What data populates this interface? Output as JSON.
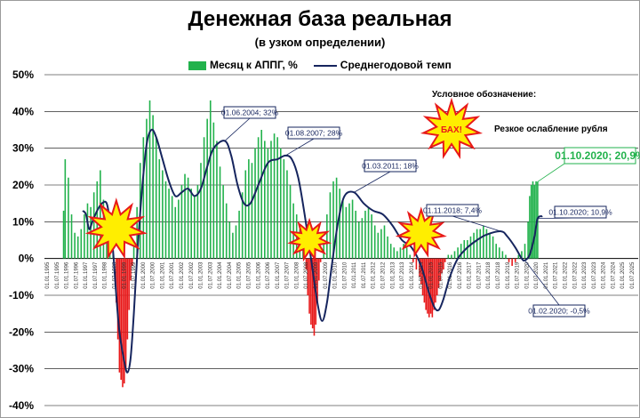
{
  "chart_data": {
    "type": "bar",
    "title": "Денежная база реальная",
    "subtitle": "(в узком определении)",
    "legend": {
      "bar": "Месяц к АППГ, %",
      "line": "Среднегодовой темп"
    },
    "ylim": [
      -40,
      50
    ],
    "ytick_labels": [
      "50%",
      "40%",
      "30%",
      "20%",
      "10%",
      "0%",
      "-10%",
      "-20%",
      "-30%",
      "-40%"
    ],
    "xtick_labels": [
      "01.01.1995",
      "01.07.1995",
      "01.01.1996",
      "01.07.1996",
      "01.01.1997",
      "01.07.1997",
      "01.01.1998",
      "01.07.1998",
      "01.01.1999",
      "01.07.1999",
      "01.01.2000",
      "01.07.2000",
      "01.01.2001",
      "01.07.2001",
      "01.01.2002",
      "01.07.2002",
      "01.01.2003",
      "01.07.2003",
      "01.01.2004",
      "01.07.2004",
      "01.01.2005",
      "01.07.2005",
      "01.01.2006",
      "01.07.2006",
      "01.01.2007",
      "01.07.2007",
      "01.01.2008",
      "01.07.2008",
      "01.01.2009",
      "01.07.2009",
      "01.01.2010",
      "01.07.2010",
      "01.01.2011",
      "01.07.2011",
      "01.01.2012",
      "01.07.2012",
      "01.01.2013",
      "01.07.2013",
      "01.01.2014",
      "01.07.2014",
      "01.01.2015",
      "01.07.2015",
      "01.01.2016",
      "01.07.2016",
      "01.01.2017",
      "01.07.2017",
      "01.01.2018",
      "01.07.2018",
      "01.01.2019",
      "01.07.2019",
      "01.01.2020",
      "01.07.2020",
      "01.01.2021",
      "01.07.2021",
      "01.01.2022",
      "01.07.2022",
      "01.01.2023",
      "01.07.2023",
      "01.01.2024",
      "01.07.2024",
      "01.01.2025",
      "01.07.2025"
    ],
    "colors": {
      "positive": "#22b24c",
      "negative": "#e8191a",
      "line": "#16255e",
      "grid": "#000000"
    },
    "monthly_series": [
      {
        "date": "1996-01",
        "value": 13
      },
      {
        "date": "1996-02",
        "value": 27
      },
      {
        "date": "1996-04",
        "value": 22
      },
      {
        "date": "1996-06",
        "value": 12
      },
      {
        "date": "1996-08",
        "value": 7
      },
      {
        "date": "1996-10",
        "value": 6
      },
      {
        "date": "1996-12",
        "value": 8
      },
      {
        "date": "1997-02",
        "value": 12
      },
      {
        "date": "1997-04",
        "value": 15
      },
      {
        "date": "1997-06",
        "value": 14
      },
      {
        "date": "1997-08",
        "value": 18
      },
      {
        "date": "1997-10",
        "value": 21
      },
      {
        "date": "1997-12",
        "value": 24
      },
      {
        "date": "1998-02",
        "value": 16
      },
      {
        "date": "1998-04",
        "value": 12
      },
      {
        "date": "1998-06",
        "value": 10
      },
      {
        "date": "1998-08",
        "value": 3
      },
      {
        "date": "1998-10",
        "value": -12
      },
      {
        "date": "1998-11",
        "value": -22
      },
      {
        "date": "1998-12",
        "value": -31
      },
      {
        "date": "1999-01",
        "value": -33
      },
      {
        "date": "1999-02",
        "value": -35
      },
      {
        "date": "1999-03",
        "value": -34
      },
      {
        "date": "1999-04",
        "value": -30
      },
      {
        "date": "1999-05",
        "value": -22
      },
      {
        "date": "1999-06",
        "value": -14
      },
      {
        "date": "1999-07",
        "value": -6
      },
      {
        "date": "1999-08",
        "value": -2
      },
      {
        "date": "1999-09",
        "value": 4
      },
      {
        "date": "1999-11",
        "value": 14
      },
      {
        "date": "2000-01",
        "value": 26
      },
      {
        "date": "2000-03",
        "value": 33
      },
      {
        "date": "2000-05",
        "value": 38
      },
      {
        "date": "2000-07",
        "value": 43
      },
      {
        "date": "2000-09",
        "value": 39
      },
      {
        "date": "2000-11",
        "value": 33
      },
      {
        "date": "2001-01",
        "value": 27
      },
      {
        "date": "2001-03",
        "value": 24
      },
      {
        "date": "2001-05",
        "value": 21
      },
      {
        "date": "2001-07",
        "value": 19
      },
      {
        "date": "2001-09",
        "value": 17
      },
      {
        "date": "2001-11",
        "value": 14
      },
      {
        "date": "2002-01",
        "value": 16
      },
      {
        "date": "2002-03",
        "value": 20
      },
      {
        "date": "2002-05",
        "value": 23
      },
      {
        "date": "2002-07",
        "value": 22
      },
      {
        "date": "2002-09",
        "value": 19
      },
      {
        "date": "2002-11",
        "value": 17
      },
      {
        "date": "2003-01",
        "value": 20
      },
      {
        "date": "2003-03",
        "value": 26
      },
      {
        "date": "2003-05",
        "value": 33
      },
      {
        "date": "2003-07",
        "value": 38
      },
      {
        "date": "2003-09",
        "value": 43
      },
      {
        "date": "2003-11",
        "value": 37
      },
      {
        "date": "2004-01",
        "value": 32
      },
      {
        "date": "2004-03",
        "value": 25
      },
      {
        "date": "2004-05",
        "value": 20
      },
      {
        "date": "2004-07",
        "value": 15
      },
      {
        "date": "2004-09",
        "value": 10
      },
      {
        "date": "2004-11",
        "value": 7
      },
      {
        "date": "2005-01",
        "value": 9
      },
      {
        "date": "2005-03",
        "value": 13
      },
      {
        "date": "2005-05",
        "value": 18
      },
      {
        "date": "2005-07",
        "value": 24
      },
      {
        "date": "2005-09",
        "value": 27
      },
      {
        "date": "2005-11",
        "value": 26
      },
      {
        "date": "2006-01",
        "value": 30
      },
      {
        "date": "2006-03",
        "value": 33
      },
      {
        "date": "2006-05",
        "value": 35
      },
      {
        "date": "2006-07",
        "value": 32
      },
      {
        "date": "2006-09",
        "value": 30
      },
      {
        "date": "2006-11",
        "value": 32
      },
      {
        "date": "2007-01",
        "value": 34
      },
      {
        "date": "2007-03",
        "value": 33
      },
      {
        "date": "2007-05",
        "value": 30
      },
      {
        "date": "2007-07",
        "value": 27
      },
      {
        "date": "2007-09",
        "value": 24
      },
      {
        "date": "2007-11",
        "value": 20
      },
      {
        "date": "2008-01",
        "value": 15
      },
      {
        "date": "2008-03",
        "value": 12
      },
      {
        "date": "2008-05",
        "value": 8
      },
      {
        "date": "2008-07",
        "value": 4
      },
      {
        "date": "2008-09",
        "value": -3
      },
      {
        "date": "2008-10",
        "value": -10
      },
      {
        "date": "2008-11",
        "value": -15
      },
      {
        "date": "2008-12",
        "value": -18
      },
      {
        "date": "2009-01",
        "value": -19
      },
      {
        "date": "2009-02",
        "value": -21
      },
      {
        "date": "2009-03",
        "value": -18
      },
      {
        "date": "2009-04",
        "value": -12
      },
      {
        "date": "2009-05",
        "value": -6
      },
      {
        "date": "2009-06",
        "value": -1
      },
      {
        "date": "2009-08",
        "value": 5
      },
      {
        "date": "2009-10",
        "value": 12
      },
      {
        "date": "2009-12",
        "value": 18
      },
      {
        "date": "2010-02",
        "value": 21
      },
      {
        "date": "2010-04",
        "value": 22
      },
      {
        "date": "2010-06",
        "value": 19
      },
      {
        "date": "2010-08",
        "value": 16
      },
      {
        "date": "2010-10",
        "value": 14
      },
      {
        "date": "2010-12",
        "value": 15
      },
      {
        "date": "2011-02",
        "value": 16
      },
      {
        "date": "2011-04",
        "value": 13
      },
      {
        "date": "2011-06",
        "value": 10
      },
      {
        "date": "2011-08",
        "value": 11
      },
      {
        "date": "2011-10",
        "value": 13
      },
      {
        "date": "2011-12",
        "value": 14
      },
      {
        "date": "2012-02",
        "value": 12
      },
      {
        "date": "2012-04",
        "value": 9
      },
      {
        "date": "2012-06",
        "value": 7
      },
      {
        "date": "2012-08",
        "value": 8
      },
      {
        "date": "2012-10",
        "value": 9
      },
      {
        "date": "2012-12",
        "value": 6
      },
      {
        "date": "2013-02",
        "value": 4
      },
      {
        "date": "2013-04",
        "value": 3
      },
      {
        "date": "2013-06",
        "value": 2
      },
      {
        "date": "2013-08",
        "value": 3
      },
      {
        "date": "2013-10",
        "value": 4
      },
      {
        "date": "2013-12",
        "value": 3
      },
      {
        "date": "2014-02",
        "value": 1
      },
      {
        "date": "2014-04",
        "value": -1
      },
      {
        "date": "2014-06",
        "value": -3
      },
      {
        "date": "2014-08",
        "value": -5
      },
      {
        "date": "2014-09",
        "value": -7
      },
      {
        "date": "2014-10",
        "value": -10
      },
      {
        "date": "2014-11",
        "value": -12
      },
      {
        "date": "2014-12",
        "value": -14
      },
      {
        "date": "2015-01",
        "value": -15
      },
      {
        "date": "2015-02",
        "value": -16
      },
      {
        "date": "2015-03",
        "value": -15
      },
      {
        "date": "2015-04",
        "value": -16
      },
      {
        "date": "2015-05",
        "value": -14
      },
      {
        "date": "2015-06",
        "value": -12
      },
      {
        "date": "2015-07",
        "value": -10
      },
      {
        "date": "2015-08",
        "value": -8
      },
      {
        "date": "2015-09",
        "value": -6
      },
      {
        "date": "2015-10",
        "value": -4
      },
      {
        "date": "2015-11",
        "value": -3
      },
      {
        "date": "2015-12",
        "value": -1
      },
      {
        "date": "2016-02",
        "value": 1
      },
      {
        "date": "2016-04",
        "value": 1
      },
      {
        "date": "2016-06",
        "value": 2
      },
      {
        "date": "2016-08",
        "value": 3
      },
      {
        "date": "2016-10",
        "value": 4
      },
      {
        "date": "2016-12",
        "value": 5
      },
      {
        "date": "2017-02",
        "value": 5
      },
      {
        "date": "2017-04",
        "value": 6
      },
      {
        "date": "2017-06",
        "value": 7
      },
      {
        "date": "2017-08",
        "value": 8
      },
      {
        "date": "2017-10",
        "value": 8
      },
      {
        "date": "2017-12",
        "value": 9
      },
      {
        "date": "2018-02",
        "value": 8
      },
      {
        "date": "2018-04",
        "value": 7
      },
      {
        "date": "2018-06",
        "value": 6
      },
      {
        "date": "2018-08",
        "value": 4
      },
      {
        "date": "2018-10",
        "value": 3
      },
      {
        "date": "2018-12",
        "value": 2
      },
      {
        "date": "2019-02",
        "value": 1
      },
      {
        "date": "2019-04",
        "value": -1
      },
      {
        "date": "2019-06",
        "value": -2
      },
      {
        "date": "2019-08",
        "value": -1
      },
      {
        "date": "2019-10",
        "value": 1
      },
      {
        "date": "2019-12",
        "value": 2
      },
      {
        "date": "2020-02",
        "value": 4
      },
      {
        "date": "2020-04",
        "value": 10
      },
      {
        "date": "2020-05",
        "value": 17
      },
      {
        "date": "2020-06",
        "value": 20
      },
      {
        "date": "2020-07",
        "value": 21
      },
      {
        "date": "2020-08",
        "value": 20
      },
      {
        "date": "2020-09",
        "value": 21
      },
      {
        "date": "2020-10",
        "value": 20.9
      }
    ],
    "avg_line": [
      {
        "date": "1997-01",
        "value": 13
      },
      {
        "date": "1997-03",
        "value": 12
      },
      {
        "date": "1997-05",
        "value": 8
      },
      {
        "date": "1997-07",
        "value": 10
      },
      {
        "date": "1997-10",
        "value": 13
      },
      {
        "date": "1998-01",
        "value": 15
      },
      {
        "date": "1998-04",
        "value": 15
      },
      {
        "date": "1998-06",
        "value": 10
      },
      {
        "date": "1998-08",
        "value": 2
      },
      {
        "date": "1998-10",
        "value": -10
      },
      {
        "date": "1998-12",
        "value": -20
      },
      {
        "date": "1999-03",
        "value": -28
      },
      {
        "date": "1999-05",
        "value": -31
      },
      {
        "date": "1999-07",
        "value": -27
      },
      {
        "date": "1999-09",
        "value": -15
      },
      {
        "date": "1999-11",
        "value": 0
      },
      {
        "date": "2000-02",
        "value": 18
      },
      {
        "date": "2000-05",
        "value": 31
      },
      {
        "date": "2000-08",
        "value": 35
      },
      {
        "date": "2000-11",
        "value": 33
      },
      {
        "date": "2001-03",
        "value": 27
      },
      {
        "date": "2001-07",
        "value": 21
      },
      {
        "date": "2001-11",
        "value": 17
      },
      {
        "date": "2002-03",
        "value": 18
      },
      {
        "date": "2002-07",
        "value": 19
      },
      {
        "date": "2002-11",
        "value": 17
      },
      {
        "date": "2003-03",
        "value": 19
      },
      {
        "date": "2003-07",
        "value": 25
      },
      {
        "date": "2003-11",
        "value": 30
      },
      {
        "date": "2004-06",
        "value": 32
      },
      {
        "date": "2004-10",
        "value": 28
      },
      {
        "date": "2005-02",
        "value": 20
      },
      {
        "date": "2005-06",
        "value": 15
      },
      {
        "date": "2005-10",
        "value": 15
      },
      {
        "date": "2006-03",
        "value": 20
      },
      {
        "date": "2006-09",
        "value": 26
      },
      {
        "date": "2007-03",
        "value": 27
      },
      {
        "date": "2007-08",
        "value": 28
      },
      {
        "date": "2007-12",
        "value": 27
      },
      {
        "date": "2008-04",
        "value": 22
      },
      {
        "date": "2008-08",
        "value": 12
      },
      {
        "date": "2008-12",
        "value": 0
      },
      {
        "date": "2009-04",
        "value": -12
      },
      {
        "date": "2009-07",
        "value": -17
      },
      {
        "date": "2009-10",
        "value": -12
      },
      {
        "date": "2010-01",
        "value": -2
      },
      {
        "date": "2010-05",
        "value": 10
      },
      {
        "date": "2010-09",
        "value": 17
      },
      {
        "date": "2011-03",
        "value": 18
      },
      {
        "date": "2011-09",
        "value": 15
      },
      {
        "date": "2012-03",
        "value": 13
      },
      {
        "date": "2012-09",
        "value": 12
      },
      {
        "date": "2013-03",
        "value": 9
      },
      {
        "date": "2013-09",
        "value": 5
      },
      {
        "date": "2014-03",
        "value": 3
      },
      {
        "date": "2014-09",
        "value": -2
      },
      {
        "date": "2015-01",
        "value": -8
      },
      {
        "date": "2015-05",
        "value": -13
      },
      {
        "date": "2015-08",
        "value": -14
      },
      {
        "date": "2015-11",
        "value": -11
      },
      {
        "date": "2016-03",
        "value": -5
      },
      {
        "date": "2016-08",
        "value": 0
      },
      {
        "date": "2017-02",
        "value": 3
      },
      {
        "date": "2017-08",
        "value": 5
      },
      {
        "date": "2018-02",
        "value": 6.5
      },
      {
        "date": "2018-11",
        "value": 7.4
      },
      {
        "date": "2019-03",
        "value": 6
      },
      {
        "date": "2019-08",
        "value": 3
      },
      {
        "date": "2019-12",
        "value": 0
      },
      {
        "date": "2020-02",
        "value": -0.5
      },
      {
        "date": "2020-05",
        "value": 1
      },
      {
        "date": "2020-08",
        "value": 6
      },
      {
        "date": "2020-10",
        "value": 10.9
      },
      {
        "date": "2021-01",
        "value": 11.5
      }
    ],
    "annotations": [
      {
        "label": "01.06.2004; 32%",
        "date": "2004-06",
        "value": 32
      },
      {
        "label": "01.08.2007; 28%",
        "date": "2007-08",
        "value": 28
      },
      {
        "label": "01.03.2011; 18%",
        "date": "2011-03",
        "value": 18
      },
      {
        "label": "01.11.2018; 7,4%",
        "date": "2018-11",
        "value": 7.4
      },
      {
        "label": "01.10.2020; 10,9%",
        "date": "2020-10",
        "value": 10.9
      },
      {
        "label": "01.02.2020; -0,5%",
        "date": "2020-02",
        "value": -0.5
      },
      {
        "label": "01.10.2020; 20,9%",
        "date": "2020-10",
        "value": 20.9,
        "highlight": true
      }
    ],
    "conditional_legend": {
      "title": "Условное обозначение:",
      "bang_text": "БАХ!",
      "description": "Резкое ослабление рубля"
    },
    "bang_markers": [
      {
        "date": "1998-10",
        "value": 8
      },
      {
        "date": "2008-11",
        "value": 5
      },
      {
        "date": "2014-09",
        "value": 7
      }
    ]
  }
}
